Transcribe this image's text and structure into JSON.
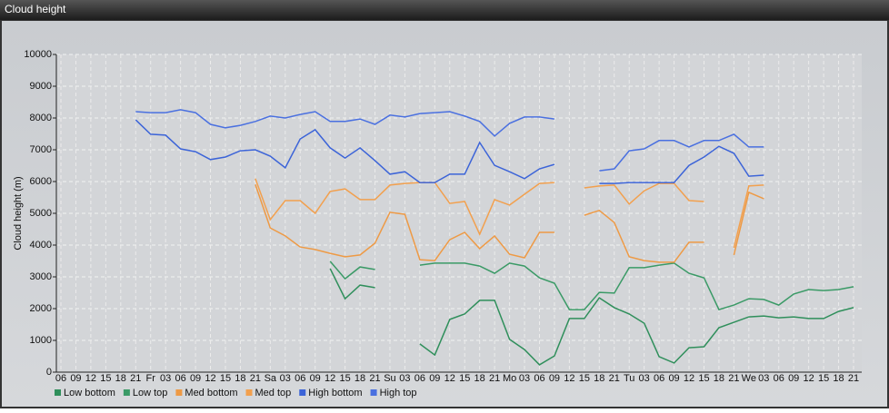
{
  "chart_data": {
    "type": "line",
    "title": "Cloud height",
    "y_label": "Cloud height (m)",
    "categories": [
      "06",
      "09",
      "12",
      "15",
      "18",
      "21",
      "Fr",
      "03",
      "06",
      "09",
      "12",
      "15",
      "18",
      "21",
      "Sa",
      "03",
      "06",
      "09",
      "12",
      "15",
      "18",
      "21",
      "Su",
      "03",
      "06",
      "09",
      "12",
      "15",
      "18",
      "21",
      "Mo",
      "03",
      "06",
      "09",
      "12",
      "15",
      "18",
      "21",
      "Tu",
      "03",
      "06",
      "09",
      "12",
      "15",
      "18",
      "21",
      "We",
      "03",
      "06",
      "09",
      "12",
      "15",
      "18",
      "21"
    ],
    "ylim": [
      0,
      10000
    ],
    "yticks": [
      0,
      1000,
      2000,
      3000,
      4000,
      5000,
      6000,
      7000,
      8000,
      9000,
      10000
    ],
    "grid": true,
    "series": [
      {
        "name": "Low bottom",
        "color": "#2f8f5b",
        "values": [
          null,
          null,
          null,
          null,
          null,
          null,
          null,
          null,
          null,
          null,
          null,
          null,
          null,
          null,
          null,
          null,
          null,
          null,
          3260,
          2310,
          2740,
          2660,
          null,
          null,
          890,
          540,
          1660,
          1830,
          2260,
          2260,
          1030,
          710,
          230,
          510,
          1690,
          1690,
          2340,
          2030,
          1830,
          1540,
          490,
          290,
          770,
          800,
          1400,
          1570,
          1740,
          1770,
          1710,
          1740,
          1690,
          1690,
          1910,
          2030
        ]
      },
      {
        "name": "Low top",
        "color": "#3a9a66",
        "values": [
          null,
          null,
          null,
          null,
          null,
          null,
          null,
          null,
          null,
          null,
          null,
          null,
          null,
          null,
          null,
          null,
          null,
          null,
          3490,
          2940,
          3310,
          3230,
          null,
          null,
          3370,
          3430,
          3430,
          3430,
          3340,
          3110,
          3430,
          3340,
          2970,
          2800,
          1970,
          1970,
          2510,
          2490,
          3290,
          3290,
          3370,
          3430,
          3110,
          2970,
          1970,
          2110,
          2310,
          2290,
          2110,
          2460,
          2600,
          2570,
          2600,
          2690
        ]
      },
      {
        "name": "Med bottom",
        "color": "#ee9a45",
        "values": [
          null,
          null,
          null,
          null,
          null,
          null,
          null,
          null,
          null,
          null,
          null,
          null,
          null,
          5910,
          4540,
          4290,
          3940,
          3860,
          3740,
          3630,
          3690,
          4060,
          5030,
          4970,
          3540,
          3510,
          4170,
          4400,
          3890,
          4290,
          3710,
          3600,
          4400,
          4400,
          null,
          4940,
          5090,
          4710,
          3630,
          3510,
          3460,
          3460,
          4090,
          4090,
          null,
          3690,
          5660,
          5460,
          null,
          null,
          null,
          null,
          null,
          null
        ]
      },
      {
        "name": "Med top",
        "color": "#f2a04e",
        "values": [
          null,
          null,
          null,
          null,
          null,
          null,
          null,
          null,
          null,
          null,
          null,
          null,
          null,
          6090,
          4800,
          5400,
          5400,
          5000,
          5690,
          5770,
          5430,
          5430,
          5890,
          5940,
          5970,
          5970,
          5310,
          5370,
          4340,
          5430,
          5260,
          5600,
          5940,
          5970,
          null,
          5800,
          5860,
          5890,
          5290,
          5710,
          5940,
          5940,
          5400,
          5370,
          null,
          3910,
          5860,
          5890,
          null,
          null,
          null,
          null,
          null,
          null
        ]
      },
      {
        "name": "High bottom",
        "color": "#3c64d8",
        "values": [
          null,
          null,
          null,
          null,
          null,
          7940,
          7490,
          7460,
          7030,
          6940,
          6690,
          6770,
          6970,
          7000,
          6800,
          6430,
          7340,
          7630,
          7060,
          6740,
          7060,
          6660,
          6230,
          6310,
          5970,
          5970,
          6230,
          6230,
          7230,
          6510,
          6310,
          6090,
          6400,
          6540,
          null,
          null,
          5940,
          5940,
          5970,
          5970,
          5970,
          5970,
          6510,
          6770,
          7110,
          6890,
          6170,
          6200,
          null,
          null,
          null,
          null,
          null,
          null
        ]
      },
      {
        "name": "High top",
        "color": "#4a70e0",
        "values": [
          null,
          null,
          null,
          null,
          null,
          8200,
          8170,
          8170,
          8260,
          8170,
          7800,
          7690,
          7770,
          7890,
          8060,
          8000,
          8110,
          8200,
          7890,
          7890,
          7970,
          7800,
          8090,
          8030,
          8140,
          8170,
          8200,
          8060,
          7890,
          7430,
          7830,
          8030,
          8030,
          7970,
          null,
          null,
          6340,
          6400,
          6970,
          7030,
          7290,
          7290,
          7090,
          7290,
          7290,
          7490,
          7090,
          7090,
          null,
          null,
          null,
          null,
          null,
          null
        ]
      }
    ]
  }
}
